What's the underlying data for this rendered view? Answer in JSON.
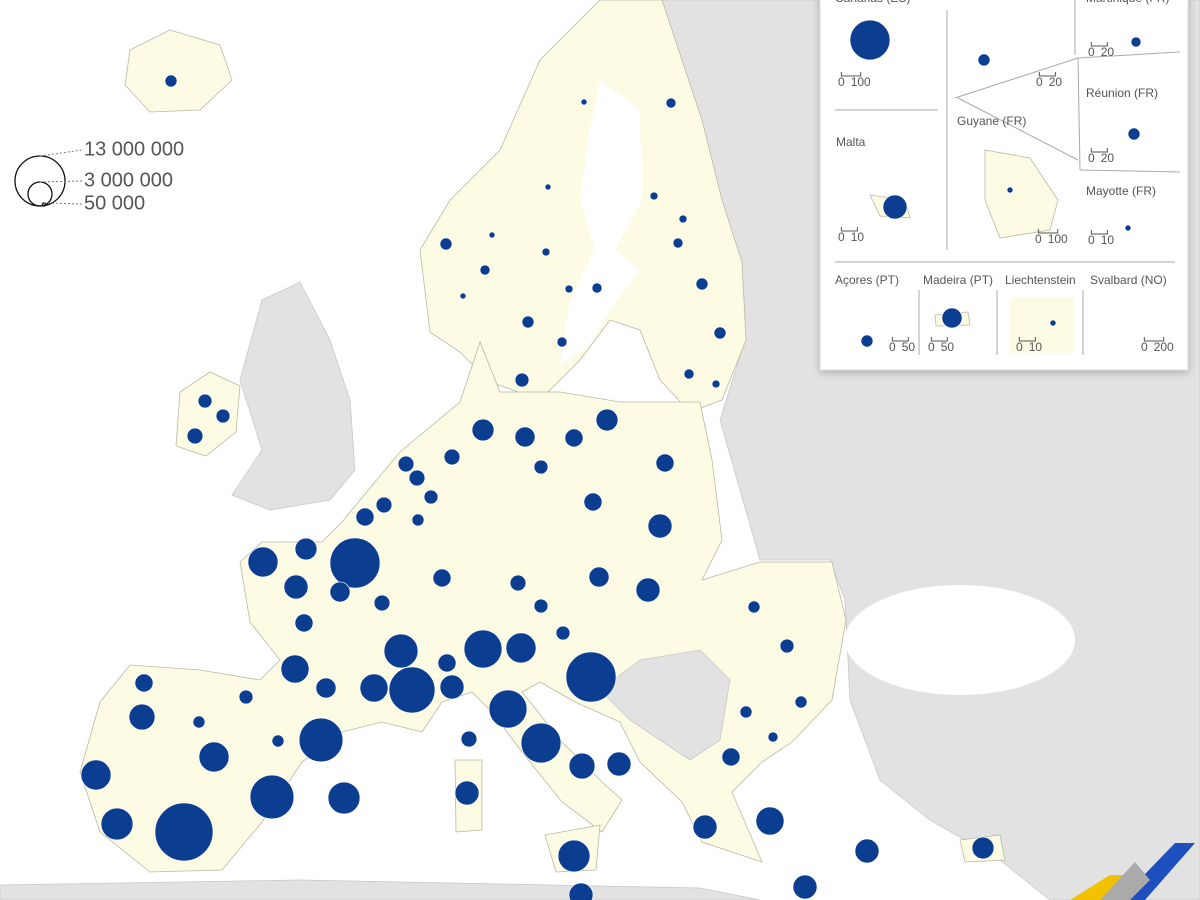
{
  "legend": {
    "sizes": [
      {
        "value": 13000000,
        "label": "13 000 000"
      },
      {
        "value": 3000000,
        "label": "3 000 000"
      },
      {
        "value": 50000,
        "label": "50 000"
      }
    ]
  },
  "regions": [
    750000,
    1000000,
    1000000,
    1300000,
    750000,
    520000,
    750000,
    190000,
    190000,
    190000,
    190000,
    330000,
    330000,
    520000,
    520000,
    1000000,
    520000,
    330000,
    330000,
    520000,
    750000,
    750000,
    520000,
    330000,
    2500000,
    2100000,
    1700000,
    2500000,
    1700000,
    1300000,
    1000000,
    1700000,
    3000000,
    1300000,
    1300000,
    1300000,
    1700000,
    750000,
    1000000,
    13000000,
    4700000,
    2500000,
    3000000,
    2100000,
    1700000,
    1300000,
    6000000,
    4100000,
    2100000,
    4100000,
    11000000,
    3000000,
    1700000,
    7500000,
    4700000,
    7500000,
    8300000,
    1300000,
    3500000,
    3000000,
    3000000,
    5300000,
    3000000,
    13000000,
    1700000,
    1300000,
    1000000,
    2100000,
    3000000,
    1000000,
    1700000,
    3500000,
    4700000,
    5300000,
    17500000,
    4700000,
    10000000,
    10000000,
    5300000,
    1000000,
    750000,
    750000,
    3000000,
    4100000,
    3000000,
    2500000,
    3000000,
    1700000,
    750000,
    1000000,
    750000,
    750000,
    520000
  ],
  "insets": [
    {
      "label": "Canarias (ES)",
      "value": 8300000,
      "scale": [
        0,
        100
      ]
    },
    {
      "value": 750000,
      "scale": [
        0,
        20
      ]
    },
    {
      "label": "Martinique (FR)",
      "value": 520000,
      "scale": [
        0,
        20
      ]
    },
    {
      "label": "Réunion (FR)",
      "value": 750000,
      "scale": [
        0,
        20
      ]
    },
    {
      "label": "Malta",
      "value": 3000000,
      "scale": [
        0,
        10
      ]
    },
    {
      "label": "Guyane (FR)",
      "value": 190000,
      "scale": [
        0,
        100
      ]
    },
    {
      "label": "Mayotte (FR)",
      "value": 190000,
      "scale": [
        0,
        10
      ]
    },
    {
      "label": "Açores (PT)",
      "value": 750000,
      "scale": [
        0,
        50
      ]
    },
    {
      "label": "Madeira (PT)",
      "value": 2100000,
      "scale": [
        0,
        50
      ]
    },
    {
      "label": "Liechtenstein",
      "value": 190000,
      "scale": [
        0,
        10
      ]
    },
    {
      "label": "Svalbard (NO)",
      "scale": [
        0,
        200
      ]
    }
  ]
}
